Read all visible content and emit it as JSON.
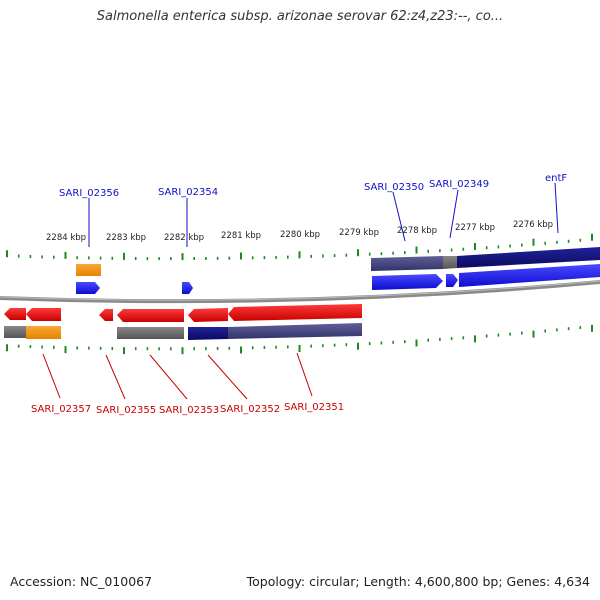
{
  "title": "Salmonella enterica subsp. arizonae serovar 62:z4,z23:--, co...",
  "footer": {
    "accession": "Accession: NC_010067",
    "topology": "Topology: circular; Length: 4,600,800 bp; Genes: 4,634"
  },
  "colors": {
    "blue_label": "#1010c8",
    "red_label": "#c80000",
    "forward_gene": "#1a1af0",
    "reverse_gene": "#e41414",
    "cds_orange": "#f59208",
    "cds_navy": "#14147a",
    "cds_purple": "#44447e",
    "cds_gray": "#6a6a6a",
    "tick_green": "#1e8a1e",
    "backbone": "#8a8a8a"
  },
  "scale_labels": [
    "2284 kbp",
    "2283 kbp",
    "2282 kbp",
    "2281 kbp",
    "2280 kbp",
    "2279 kbp",
    "2278 kbp",
    "2277 kbp",
    "2276 kbp"
  ],
  "top_labels": [
    "SARI_02356",
    "SARI_02354",
    "SARI_02350",
    "SARI_02349",
    "entF"
  ],
  "bottom_labels": [
    "SARI_02357",
    "SARI_02355",
    "SARI_02353",
    "SARI_02352",
    "SARI_02351"
  ]
}
